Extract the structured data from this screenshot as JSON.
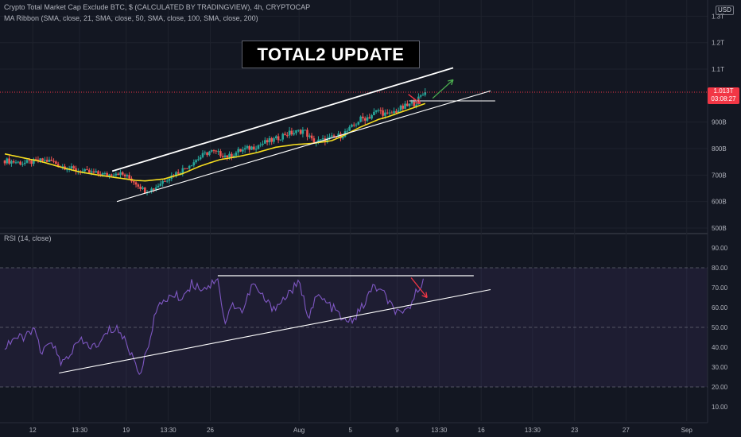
{
  "legend": {
    "main": "Crypto Total Market Cap Exclude BTC, $ (CALCULATED BY TRADINGVIEW), 4h, CRYPTOCAP",
    "ma": "MA Ribbon (SMA, close, 21, SMA, close, 50, SMA, close, 100, SMA, close, 200)",
    "rsi": "RSI (14, close)"
  },
  "currency": "USD",
  "annotation_title": "TOTAL2 UPDATE",
  "last_price": {
    "value": "1.013T",
    "countdown": "03:08:27"
  },
  "colors": {
    "background": "#131722",
    "up": "#26a69a",
    "down": "#ef5350",
    "ma": "#f5dd20",
    "rsi": "#7e57c2",
    "rsi_band": "#7e57c2",
    "price_tag": "#f23645",
    "trendline": "#ffffff",
    "green_arrow": "#4caf50",
    "red_arrow": "#f23645"
  },
  "chart_data": [
    {
      "type": "candlestick",
      "ylim": [
        480,
        1370
      ],
      "y_axis_ticks": [
        {
          "value": 500,
          "label": "500B"
        },
        {
          "value": 600,
          "label": "600B"
        },
        {
          "value": 700,
          "label": "700B"
        },
        {
          "value": 800,
          "label": "800B"
        },
        {
          "value": 900,
          "label": "900B"
        },
        {
          "value": 1100,
          "label": "1.1T"
        },
        {
          "value": 1200,
          "label": "1.2T"
        },
        {
          "value": 1300,
          "label": "1.3T"
        }
      ],
      "x_axis_ticks": [
        {
          "label": "12",
          "t": 3.0
        },
        {
          "label": "13:30",
          "t": 8.0
        },
        {
          "label": "19",
          "t": 13.0
        },
        {
          "label": "13:30",
          "t": 17.5
        },
        {
          "label": "26",
          "t": 22.0
        },
        {
          "label": "Aug",
          "t": 31.5
        },
        {
          "label": "5",
          "t": 37.0
        },
        {
          "label": "9",
          "t": 42.0
        },
        {
          "label": "13:30",
          "t": 46.5
        },
        {
          "label": "16",
          "t": 51.0
        },
        {
          "label": "13:30",
          "t": 56.5
        },
        {
          "label": "23",
          "t": 61.0
        },
        {
          "label": "27",
          "t": 66.5
        },
        {
          "label": "Sep",
          "t": 73.0
        }
      ],
      "price_keypoints": [
        [
          0,
          755
        ],
        [
          2,
          745
        ],
        [
          4,
          755
        ],
        [
          5,
          752
        ],
        [
          6,
          735
        ],
        [
          8,
          715
        ],
        [
          9,
          710
        ],
        [
          10,
          705
        ],
        [
          11,
          700
        ],
        [
          12,
          710
        ],
        [
          13,
          695
        ],
        [
          14,
          672
        ],
        [
          15,
          640
        ],
        [
          16,
          650
        ],
        [
          17,
          680
        ],
        [
          18,
          700
        ],
        [
          19,
          720
        ],
        [
          20,
          745
        ],
        [
          21,
          770
        ],
        [
          22,
          790
        ],
        [
          23,
          780
        ],
        [
          24,
          770
        ],
        [
          25,
          790
        ],
        [
          26,
          800
        ],
        [
          27,
          810
        ],
        [
          28,
          825
        ],
        [
          29,
          835
        ],
        [
          30,
          855
        ],
        [
          31,
          860
        ],
        [
          32,
          870
        ],
        [
          33,
          825
        ],
        [
          34,
          830
        ],
        [
          35,
          840
        ],
        [
          36,
          850
        ],
        [
          37,
          875
        ],
        [
          38,
          910
        ],
        [
          39,
          920
        ],
        [
          40,
          945
        ],
        [
          41,
          925
        ],
        [
          42,
          945
        ],
        [
          43,
          960
        ],
        [
          44,
          975
        ],
        [
          45,
          1013
        ]
      ],
      "ma_keypoints": [
        [
          0,
          780
        ],
        [
          2,
          765
        ],
        [
          4,
          750
        ],
        [
          6,
          730
        ],
        [
          8,
          712
        ],
        [
          10,
          700
        ],
        [
          12,
          690
        ],
        [
          14,
          680
        ],
        [
          15,
          678
        ],
        [
          17,
          685
        ],
        [
          19,
          705
        ],
        [
          21,
          735
        ],
        [
          23,
          758
        ],
        [
          25,
          770
        ],
        [
          27,
          785
        ],
        [
          29,
          805
        ],
        [
          31,
          815
        ],
        [
          33,
          820
        ],
        [
          35,
          830
        ],
        [
          36,
          845
        ],
        [
          38,
          880
        ],
        [
          40,
          910
        ],
        [
          41,
          920
        ],
        [
          43,
          945
        ],
        [
          45,
          970
        ]
      ],
      "last_price": 1013,
      "upper_channel": [
        [
          11.5,
          715
        ],
        [
          48.0,
          1105
        ]
      ],
      "lower_channel": [
        [
          12.0,
          600
        ],
        [
          52.0,
          1018
        ]
      ],
      "horizontal_level": [
        [
          43.3,
          980
        ],
        [
          52.5,
          980
        ]
      ],
      "projection_up": [
        [
          45.8,
          990
        ],
        [
          48.0,
          1060
        ]
      ],
      "projection_down": [
        [
          43.2,
          1005
        ],
        [
          44.5,
          970
        ]
      ]
    },
    {
      "type": "line",
      "title": "RSI (14, close)",
      "ylim": [
        2,
        98
      ],
      "y_axis_ticks": [
        10,
        20,
        30,
        40,
        50,
        60,
        70,
        80,
        90
      ],
      "tick_labels": [
        "10.00",
        "20.00",
        "30.00",
        "40.00",
        "50.00",
        "60.00",
        "70.00",
        "80.00",
        "90.00"
      ],
      "band": [
        20,
        80
      ],
      "midline": 50,
      "rsi_keypoints": [
        [
          0,
          40
        ],
        [
          1,
          45
        ],
        [
          2,
          44
        ],
        [
          3,
          50
        ],
        [
          4,
          36
        ],
        [
          5,
          44
        ],
        [
          6,
          31
        ],
        [
          7,
          37
        ],
        [
          8,
          43
        ],
        [
          9,
          41
        ],
        [
          10,
          40
        ],
        [
          11,
          48
        ],
        [
          12,
          50
        ],
        [
          13,
          42
        ],
        [
          14,
          32
        ],
        [
          14.5,
          27
        ],
        [
          15,
          34
        ],
        [
          16,
          55
        ],
        [
          17,
          64
        ],
        [
          18,
          66
        ],
        [
          19,
          65
        ],
        [
          20,
          72
        ],
        [
          21,
          70
        ],
        [
          22,
          71
        ],
        [
          22.8,
          76
        ],
        [
          23.5,
          52
        ],
        [
          24.5,
          62
        ],
        [
          25.5,
          58
        ],
        [
          26.5,
          72
        ],
        [
          27.5,
          66
        ],
        [
          28.5,
          60
        ],
        [
          29.5,
          62
        ],
        [
          30.5,
          68
        ],
        [
          31.5,
          72
        ],
        [
          32.5,
          56
        ],
        [
          33.5,
          66
        ],
        [
          34.5,
          62
        ],
        [
          35.5,
          58
        ],
        [
          36.5,
          52
        ],
        [
          37.5,
          55
        ],
        [
          38.5,
          62
        ],
        [
          39.5,
          71
        ],
        [
          40.5,
          67
        ],
        [
          41.5,
          60
        ],
        [
          42.5,
          55
        ],
        [
          43.5,
          62
        ],
        [
          44.5,
          72
        ],
        [
          45.0,
          76
        ]
      ],
      "resistance": [
        [
          22.8,
          76
        ],
        [
          50.2,
          76
        ]
      ],
      "support": [
        [
          5.8,
          27
        ],
        [
          52.0,
          69
        ]
      ],
      "projection_down": [
        [
          43.5,
          75
        ],
        [
          45.2,
          65
        ]
      ]
    }
  ]
}
